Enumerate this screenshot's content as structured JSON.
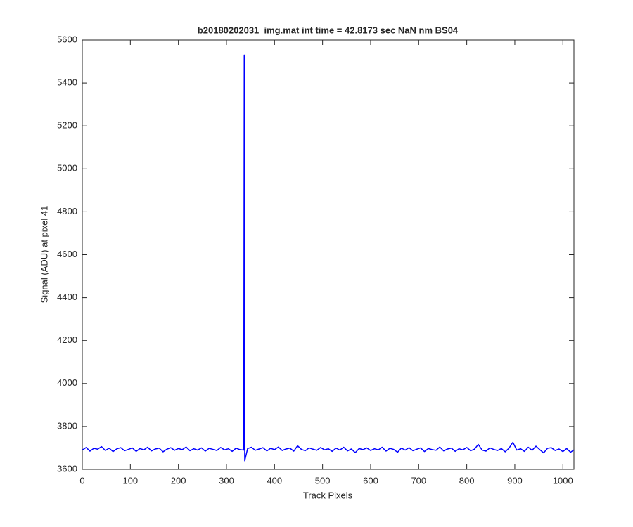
{
  "chart_data": {
    "type": "line",
    "title": "b20180202031_img.mat int time = 42.8173 sec  NaN nm BS04",
    "xlabel": "Track Pixels",
    "ylabel": "Signal (ADU) at pixel 41",
    "x": [
      0,
      8,
      16,
      24,
      32,
      40,
      48,
      56,
      64,
      72,
      80,
      88,
      96,
      104,
      112,
      120,
      128,
      136,
      144,
      152,
      160,
      168,
      176,
      184,
      192,
      200,
      208,
      216,
      224,
      232,
      240,
      248,
      256,
      264,
      272,
      280,
      288,
      296,
      304,
      312,
      320,
      328,
      336,
      337,
      338,
      344,
      352,
      360,
      368,
      376,
      384,
      392,
      400,
      408,
      416,
      424,
      432,
      440,
      448,
      456,
      464,
      472,
      480,
      488,
      496,
      504,
      512,
      520,
      528,
      536,
      544,
      552,
      560,
      568,
      576,
      584,
      592,
      600,
      608,
      616,
      624,
      632,
      640,
      648,
      656,
      664,
      672,
      680,
      688,
      696,
      704,
      712,
      720,
      728,
      736,
      744,
      752,
      760,
      768,
      776,
      784,
      792,
      800,
      808,
      816,
      824,
      832,
      840,
      848,
      856,
      864,
      872,
      880,
      888,
      896,
      904,
      912,
      920,
      928,
      936,
      944,
      952,
      960,
      968,
      976,
      984,
      992,
      1000,
      1008,
      1016,
      1023
    ],
    "series": [
      {
        "color": "#0000ff",
        "values": [
          3690,
          3702,
          3685,
          3698,
          3694,
          3706,
          3688,
          3699,
          3683,
          3696,
          3701,
          3687,
          3693,
          3700,
          3684,
          3697,
          3691,
          3703,
          3686,
          3695,
          3699,
          3682,
          3694,
          3701,
          3689,
          3697,
          3692,
          3704,
          3687,
          3696,
          3690,
          3700,
          3685,
          3698,
          3693,
          3688,
          3702,
          3691,
          3696,
          3684,
          3699,
          3692,
          3690,
          5530,
          3640,
          3697,
          3703,
          3689,
          3695,
          3701,
          3686,
          3698,
          3692,
          3704,
          3688,
          3695,
          3699,
          3685,
          3710,
          3693,
          3687,
          3700,
          3694,
          3689,
          3702,
          3691,
          3696,
          3684,
          3699,
          3690,
          3703,
          3686,
          3695,
          3678,
          3697,
          3692,
          3700,
          3688,
          3696,
          3691,
          3703,
          3685,
          3698,
          3693,
          3680,
          3699,
          3690,
          3701,
          3687,
          3694,
          3700,
          3683,
          3697,
          3692,
          3689,
          3704,
          3686,
          3695,
          3699,
          3684,
          3696,
          3691,
          3702,
          3687,
          3694,
          3716,
          3690,
          3685,
          3700,
          3693,
          3688,
          3697,
          3682,
          3699,
          3726,
          3690,
          3696,
          3684,
          3703,
          3689,
          3708,
          3692,
          3677,
          3698,
          3701,
          3688,
          3695,
          3683,
          3697,
          3680,
          3691
        ]
      }
    ],
    "xlim": [
      0,
      1023
    ],
    "ylim": [
      3600,
      5600
    ],
    "xticks": [
      0,
      100,
      200,
      300,
      400,
      500,
      600,
      700,
      800,
      900,
      1000
    ],
    "yticks": [
      3600,
      3800,
      4000,
      4200,
      4400,
      4600,
      4800,
      5000,
      5200,
      5400,
      5600
    ],
    "grid": false
  }
}
